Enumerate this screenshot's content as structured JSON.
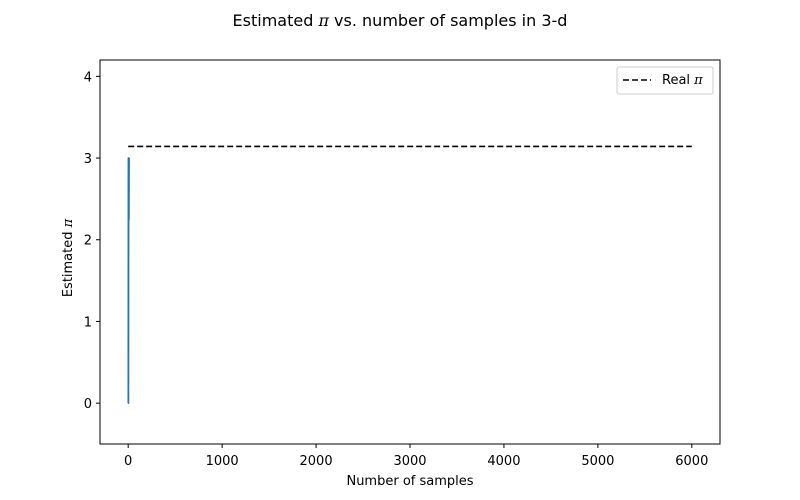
{
  "chart_data": {
    "type": "line",
    "title": "Estimated π vs. number of samples in 3-d",
    "xlabel": "Number of samples",
    "ylabel": "Estimated π",
    "xlim": [
      -300,
      6300
    ],
    "ylim": [
      -0.5,
      4.2
    ],
    "xticks": [
      0,
      1000,
      2000,
      3000,
      4000,
      5000,
      6000
    ],
    "yticks": [
      0,
      1,
      2,
      3,
      4
    ],
    "grid": false,
    "legend_position": "top-right",
    "series": [
      {
        "name": "",
        "color": "#1f77b4",
        "style": "solid",
        "x": [
          1,
          2,
          3,
          4,
          5,
          6,
          7,
          8,
          9,
          10
        ],
        "y": [
          0,
          3,
          0,
          1.5,
          2.4,
          3.0,
          2.57,
          2.25,
          2.67,
          3.0
        ]
      },
      {
        "name": "Real π",
        "color": "#000000",
        "style": "dashed",
        "x": [
          0,
          6000
        ],
        "y": [
          3.14159,
          3.14159
        ]
      }
    ]
  }
}
